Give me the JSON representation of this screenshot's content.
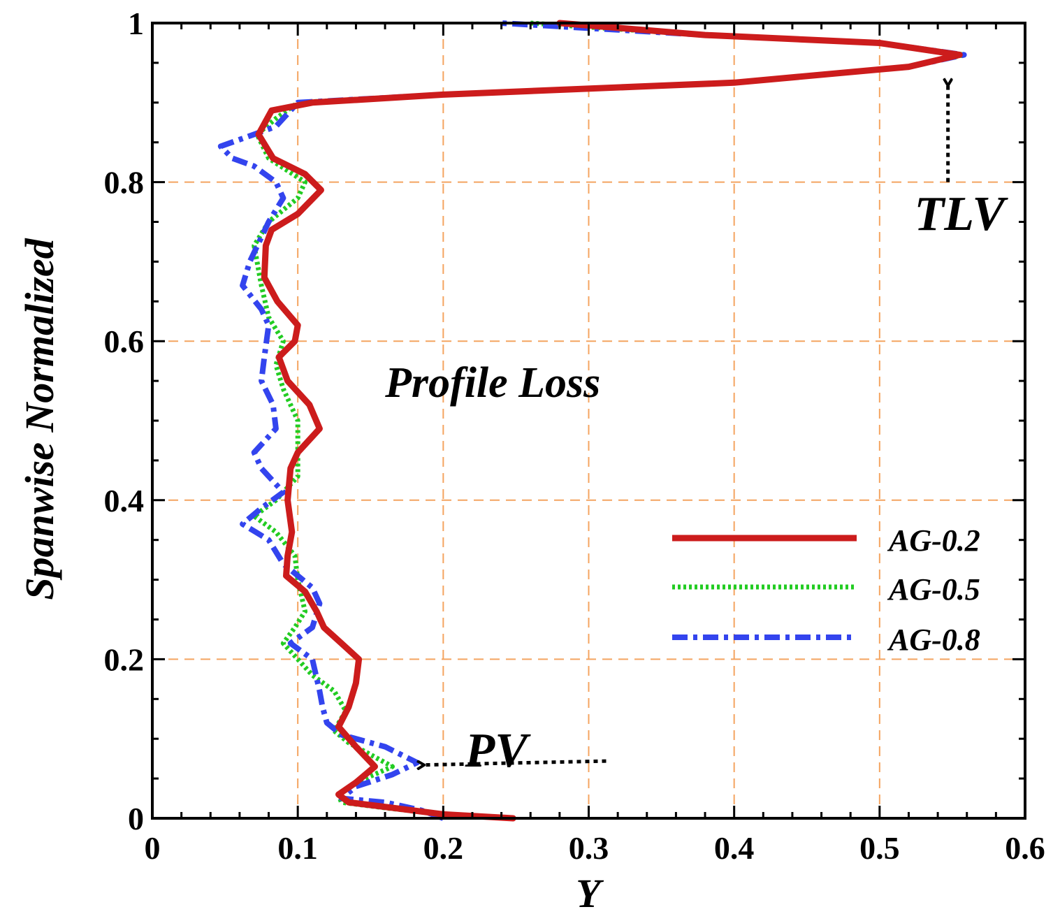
{
  "chart_data": {
    "type": "line",
    "title": "",
    "xlabel": "Y",
    "ylabel": "Spanwise Normalized",
    "xlim": [
      0,
      0.6
    ],
    "ylim": [
      0,
      1
    ],
    "xticks": [
      0,
      0.1,
      0.2,
      0.3,
      0.4,
      0.5,
      0.6
    ],
    "yticks": [
      0,
      0.2,
      0.4,
      0.6,
      0.8,
      1
    ],
    "xtick_labels": [
      "0",
      "0.1",
      "0.2",
      "0.3",
      "0.4",
      "0.5",
      "0.6"
    ],
    "ytick_labels": [
      "0",
      "0.2",
      "0.4",
      "0.6",
      "0.8",
      "1"
    ],
    "grid": true,
    "legend_position": "right-middle",
    "series": [
      {
        "name": "AG-0.2",
        "color": "#cc1c1c",
        "style": "solid",
        "points": [
          [
            0.248,
            0.0
          ],
          [
            0.2,
            0.005
          ],
          [
            0.17,
            0.012
          ],
          [
            0.135,
            0.02
          ],
          [
            0.128,
            0.03
          ],
          [
            0.14,
            0.045
          ],
          [
            0.153,
            0.065
          ],
          [
            0.14,
            0.09
          ],
          [
            0.128,
            0.115
          ],
          [
            0.135,
            0.14
          ],
          [
            0.14,
            0.17
          ],
          [
            0.142,
            0.2
          ],
          [
            0.13,
            0.22
          ],
          [
            0.118,
            0.24
          ],
          [
            0.113,
            0.26
          ],
          [
            0.105,
            0.285
          ],
          [
            0.092,
            0.305
          ],
          [
            0.093,
            0.33
          ],
          [
            0.096,
            0.36
          ],
          [
            0.093,
            0.4
          ],
          [
            0.095,
            0.44
          ],
          [
            0.1,
            0.46
          ],
          [
            0.115,
            0.49
          ],
          [
            0.108,
            0.52
          ],
          [
            0.093,
            0.55
          ],
          [
            0.087,
            0.58
          ],
          [
            0.098,
            0.6
          ],
          [
            0.1,
            0.62
          ],
          [
            0.086,
            0.65
          ],
          [
            0.077,
            0.68
          ],
          [
            0.078,
            0.72
          ],
          [
            0.082,
            0.74
          ],
          [
            0.1,
            0.76
          ],
          [
            0.116,
            0.79
          ],
          [
            0.105,
            0.81
          ],
          [
            0.083,
            0.83
          ],
          [
            0.073,
            0.86
          ],
          [
            0.082,
            0.89
          ],
          [
            0.11,
            0.9
          ],
          [
            0.2,
            0.91
          ],
          [
            0.4,
            0.925
          ],
          [
            0.52,
            0.945
          ],
          [
            0.555,
            0.96
          ],
          [
            0.5,
            0.975
          ],
          [
            0.38,
            0.985
          ],
          [
            0.28,
            1.0
          ]
        ]
      },
      {
        "name": "AG-0.5",
        "color": "#22cc22",
        "style": "dotted",
        "points": [
          [
            0.248,
            0.0
          ],
          [
            0.2,
            0.005
          ],
          [
            0.165,
            0.012
          ],
          [
            0.13,
            0.02
          ],
          [
            0.128,
            0.03
          ],
          [
            0.14,
            0.045
          ],
          [
            0.165,
            0.065
          ],
          [
            0.135,
            0.095
          ],
          [
            0.125,
            0.11
          ],
          [
            0.133,
            0.135
          ],
          [
            0.125,
            0.16
          ],
          [
            0.11,
            0.18
          ],
          [
            0.09,
            0.22
          ],
          [
            0.098,
            0.24
          ],
          [
            0.105,
            0.26
          ],
          [
            0.1,
            0.3
          ],
          [
            0.098,
            0.33
          ],
          [
            0.085,
            0.36
          ],
          [
            0.07,
            0.38
          ],
          [
            0.085,
            0.4
          ],
          [
            0.1,
            0.43
          ],
          [
            0.1,
            0.47
          ],
          [
            0.1,
            0.5
          ],
          [
            0.09,
            0.54
          ],
          [
            0.085,
            0.57
          ],
          [
            0.09,
            0.6
          ],
          [
            0.08,
            0.63
          ],
          [
            0.075,
            0.67
          ],
          [
            0.07,
            0.72
          ],
          [
            0.08,
            0.75
          ],
          [
            0.1,
            0.78
          ],
          [
            0.105,
            0.8
          ],
          [
            0.08,
            0.83
          ],
          [
            0.072,
            0.86
          ],
          [
            0.085,
            0.88
          ],
          [
            0.1,
            0.9
          ],
          [
            0.2,
            0.91
          ],
          [
            0.4,
            0.925
          ],
          [
            0.52,
            0.945
          ],
          [
            0.558,
            0.96
          ],
          [
            0.5,
            0.975
          ],
          [
            0.38,
            0.985
          ],
          [
            0.26,
            1.0
          ]
        ]
      },
      {
        "name": "AG-0.8",
        "color": "#3344ee",
        "style": "dashdot",
        "points": [
          [
            0.2,
            0.0
          ],
          [
            0.185,
            0.01
          ],
          [
            0.16,
            0.02
          ],
          [
            0.13,
            0.025
          ],
          [
            0.14,
            0.04
          ],
          [
            0.165,
            0.055
          ],
          [
            0.182,
            0.07
          ],
          [
            0.16,
            0.09
          ],
          [
            0.13,
            0.105
          ],
          [
            0.12,
            0.12
          ],
          [
            0.117,
            0.14
          ],
          [
            0.115,
            0.16
          ],
          [
            0.11,
            0.2
          ],
          [
            0.095,
            0.22
          ],
          [
            0.11,
            0.24
          ],
          [
            0.115,
            0.27
          ],
          [
            0.11,
            0.29
          ],
          [
            0.09,
            0.32
          ],
          [
            0.08,
            0.35
          ],
          [
            0.062,
            0.37
          ],
          [
            0.075,
            0.39
          ],
          [
            0.09,
            0.41
          ],
          [
            0.075,
            0.44
          ],
          [
            0.07,
            0.46
          ],
          [
            0.085,
            0.49
          ],
          [
            0.083,
            0.52
          ],
          [
            0.075,
            0.55
          ],
          [
            0.077,
            0.58
          ],
          [
            0.08,
            0.62
          ],
          [
            0.075,
            0.64
          ],
          [
            0.062,
            0.67
          ],
          [
            0.067,
            0.7
          ],
          [
            0.08,
            0.75
          ],
          [
            0.09,
            0.78
          ],
          [
            0.085,
            0.8
          ],
          [
            0.07,
            0.82
          ],
          [
            0.055,
            0.83
          ],
          [
            0.047,
            0.845
          ],
          [
            0.07,
            0.86
          ],
          [
            0.085,
            0.87
          ],
          [
            0.1,
            0.9
          ],
          [
            0.2,
            0.91
          ],
          [
            0.4,
            0.925
          ],
          [
            0.52,
            0.945
          ],
          [
            0.558,
            0.96
          ],
          [
            0.5,
            0.975
          ],
          [
            0.38,
            0.985
          ],
          [
            0.24,
            1.0
          ]
        ]
      }
    ],
    "annotations": [
      {
        "text": "Profile Loss",
        "x": 0.16,
        "y": 0.53
      },
      {
        "text": "TLV",
        "x": 0.555,
        "y": 0.74
      },
      {
        "text": "PV",
        "x": 0.215,
        "y": 0.065
      }
    ],
    "arrows": [
      {
        "name": "tlv-arrow",
        "from": [
          0.547,
          0.8
        ],
        "to": [
          0.547,
          0.925
        ]
      },
      {
        "name": "pv-arrow",
        "from": [
          0.312,
          0.072
        ],
        "to": [
          0.185,
          0.067
        ]
      }
    ]
  }
}
